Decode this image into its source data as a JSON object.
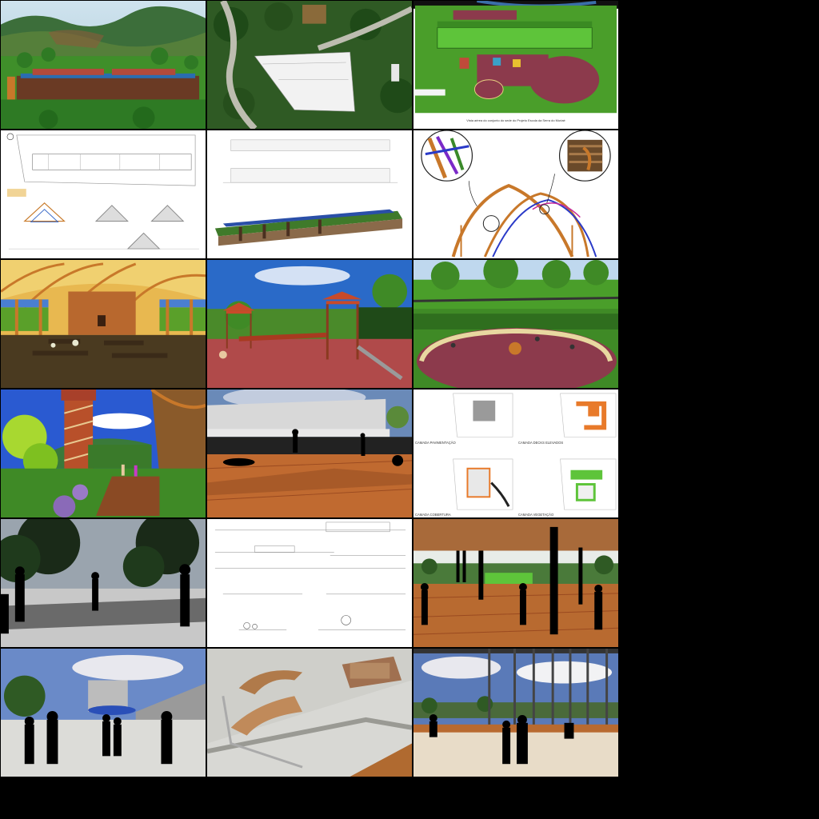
{
  "gallery": {
    "tile_count": 18,
    "tiles": [
      {
        "id": "aerial-render-valley"
      },
      {
        "id": "satellite-site-plan"
      },
      {
        "id": "landscape-plan-render"
      },
      {
        "id": "technical-plan-sections"
      },
      {
        "id": "elevations-and-3d-view"
      },
      {
        "id": "timber-structure-diagram"
      },
      {
        "id": "interior-timber-hall"
      },
      {
        "id": "playground-render"
      },
      {
        "id": "amphitheater-render"
      },
      {
        "id": "spiral-tower-render"
      },
      {
        "id": "wood-deck-render"
      },
      {
        "id": "layer-diagrams"
      },
      {
        "id": "plaza-silhouettes"
      },
      {
        "id": "technical-sections-sheet"
      },
      {
        "id": "covered-plaza-columns"
      },
      {
        "id": "urban-plaza-render"
      },
      {
        "id": "physical-model-photo"
      },
      {
        "id": "glass-pavilion-render"
      }
    ]
  },
  "layer_labels": {
    "paving": "CAMADA PAVIMENTAÇÃO",
    "decks": "CAMADA DECKS ELEVADOS",
    "roof": "CAMADA COBERTURA",
    "vegetation": "CAMADA VEGETAÇÃO"
  },
  "site_caption": "Vista aérea do conjunto do sede do Projeto Escola da Serra do Muriaé",
  "colors": {
    "grass": "#4a9e2a",
    "sky": "#4a7fd1",
    "timber": "#c8782a",
    "plaza": "#8c3a4c",
    "deck": "#b8682e"
  }
}
